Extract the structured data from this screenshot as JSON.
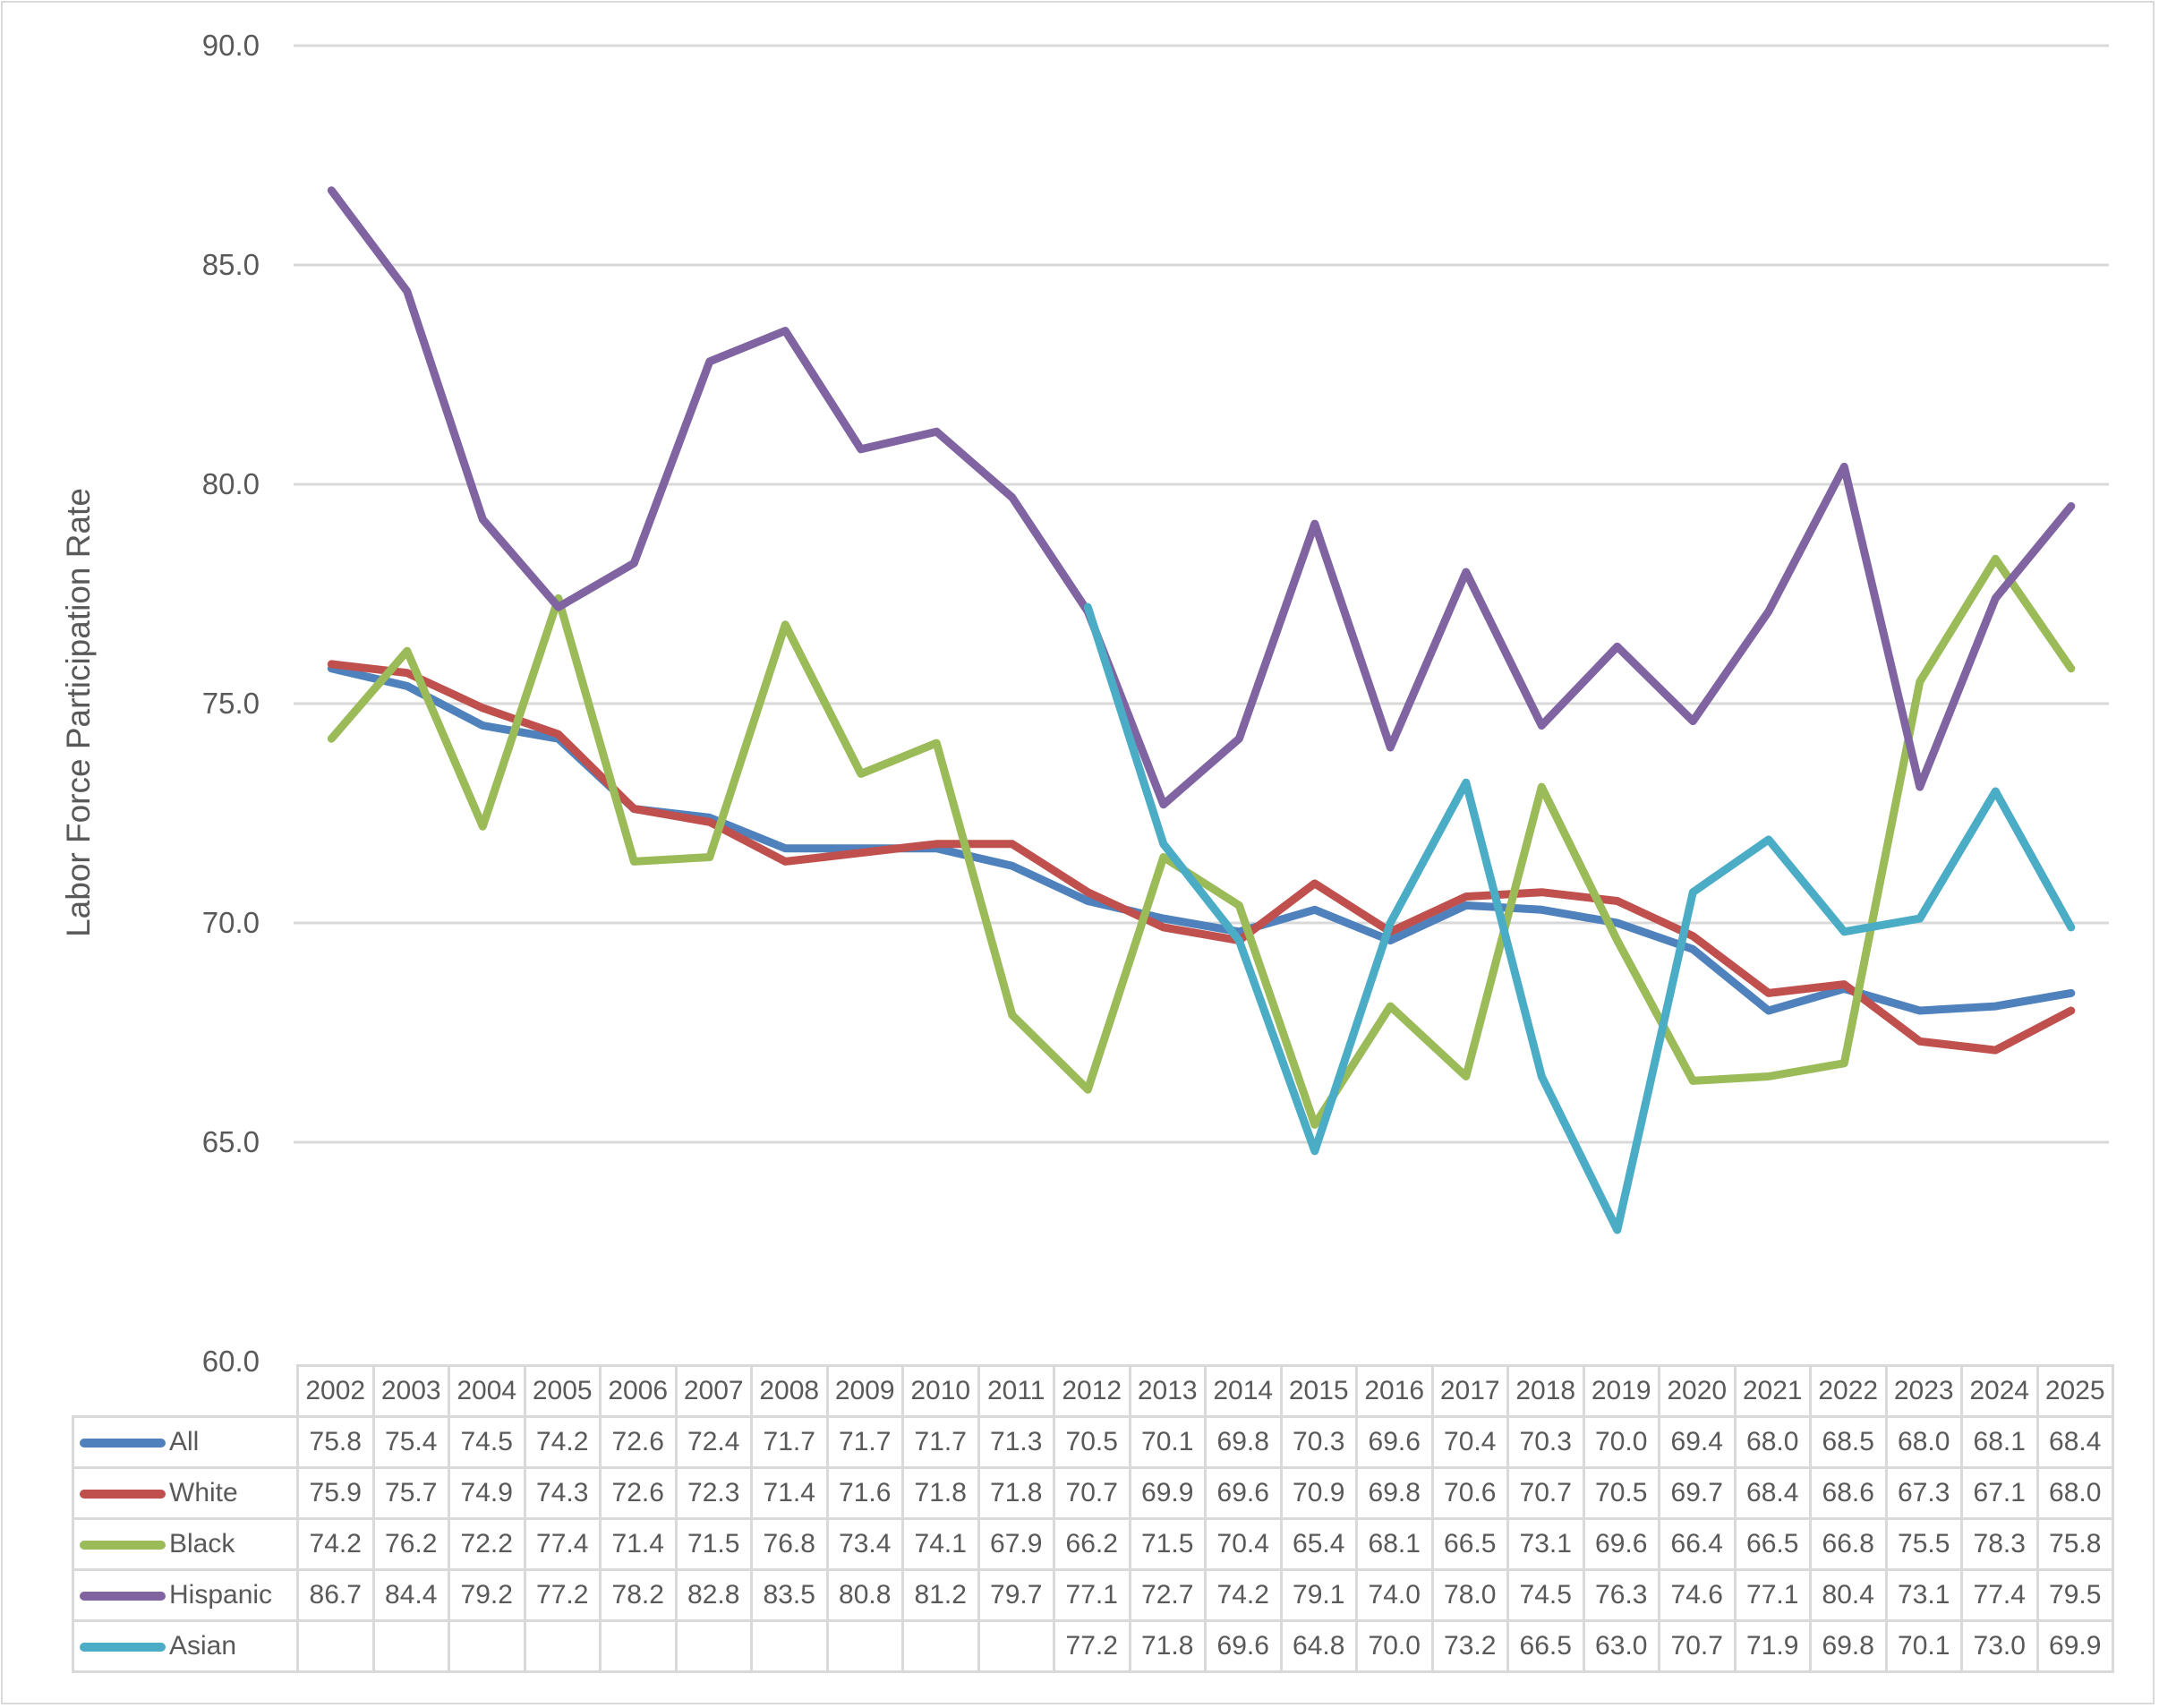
{
  "chart_data": {
    "type": "line",
    "title": "",
    "xlabel": "",
    "ylabel": "Labor Force Participation Rate",
    "ylim": [
      60,
      90
    ],
    "yticks": [
      "90.0",
      "85.0",
      "80.0",
      "75.0",
      "70.0",
      "65.0",
      "60.0"
    ],
    "grid": true,
    "legend_position": "data-table",
    "categories": [
      "2002",
      "2003",
      "2004",
      "2005",
      "2006",
      "2007",
      "2008",
      "2009",
      "2010",
      "2011",
      "2012",
      "2013",
      "2014",
      "2015",
      "2016",
      "2017",
      "2018",
      "2019",
      "2020",
      "2021",
      "2022",
      "2023",
      "2024",
      "2025"
    ],
    "series": [
      {
        "name": "All",
        "color": "#4F81BD",
        "values": [
          75.8,
          75.4,
          74.5,
          74.2,
          72.6,
          72.4,
          71.7,
          71.7,
          71.7,
          71.3,
          70.5,
          70.1,
          69.8,
          70.3,
          69.6,
          70.4,
          70.3,
          70.0,
          69.4,
          68.0,
          68.5,
          68.0,
          68.1,
          68.4
        ]
      },
      {
        "name": "White",
        "color": "#C0504D",
        "values": [
          75.9,
          75.7,
          74.9,
          74.3,
          72.6,
          72.3,
          71.4,
          71.6,
          71.8,
          71.8,
          70.7,
          69.9,
          69.6,
          70.9,
          69.8,
          70.6,
          70.7,
          70.5,
          69.7,
          68.4,
          68.6,
          67.3,
          67.1,
          68.0
        ]
      },
      {
        "name": "Black",
        "color": "#9BBB59",
        "values": [
          74.2,
          76.2,
          72.2,
          77.4,
          71.4,
          71.5,
          76.8,
          73.4,
          74.1,
          67.9,
          66.2,
          71.5,
          70.4,
          65.4,
          68.1,
          66.5,
          73.1,
          69.6,
          66.4,
          66.5,
          66.8,
          75.5,
          78.3,
          75.8
        ]
      },
      {
        "name": "Hispanic",
        "color": "#8064A2",
        "values": [
          86.7,
          84.4,
          79.2,
          77.2,
          78.2,
          82.8,
          83.5,
          80.8,
          81.2,
          79.7,
          77.1,
          72.7,
          74.2,
          79.1,
          74.0,
          78.0,
          74.5,
          76.3,
          74.6,
          77.1,
          80.4,
          73.1,
          77.4,
          79.5
        ]
      },
      {
        "name": "Asian",
        "color": "#4BACC6",
        "values": [
          null,
          null,
          null,
          null,
          null,
          null,
          null,
          null,
          null,
          null,
          77.2,
          71.8,
          69.6,
          64.8,
          70.0,
          73.2,
          66.5,
          63.0,
          70.7,
          71.9,
          69.8,
          70.1,
          73.0,
          69.9
        ]
      }
    ]
  }
}
